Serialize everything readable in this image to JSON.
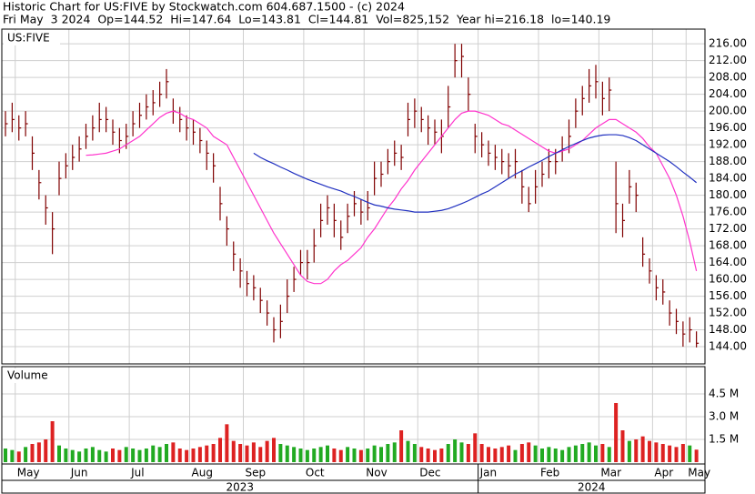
{
  "chart_data": {
    "type": "ohlc",
    "title": "Historic Chart for US:FIVE by Stockwatch.com 604.687.1500 - (c) 2024",
    "subtitle": "Fri May  3 2024  Op=144.52  Hi=147.64  Lo=143.81  Cl=144.81  Vol=825,152  Year hi=216.18  lo=140.19",
    "symbol": "US:FIVE",
    "categories": [
      null,
      null,
      "May",
      null,
      null,
      null,
      null,
      null,
      null,
      null,
      "Jun",
      null,
      null,
      null,
      null,
      null,
      null,
      null,
      null,
      "Jul",
      null,
      null,
      null,
      null,
      null,
      null,
      null,
      null,
      "Aug",
      null,
      null,
      null,
      null,
      null,
      null,
      null,
      "Sep",
      null,
      null,
      null,
      null,
      null,
      null,
      null,
      null,
      "Oct",
      null,
      null,
      null,
      null,
      null,
      null,
      null,
      null,
      "Nov",
      null,
      null,
      null,
      null,
      null,
      null,
      null,
      "Dec",
      null,
      null,
      null,
      null,
      null,
      null,
      null,
      null,
      "Jan",
      null,
      null,
      null,
      null,
      null,
      null,
      null,
      null,
      "Feb",
      null,
      null,
      null,
      null,
      null,
      null,
      null,
      null,
      "Mar",
      null,
      null,
      null,
      null,
      null,
      null,
      null,
      "Apr",
      null,
      null,
      null,
      null,
      "May",
      null
    ],
    "x_groups": [
      "2023",
      "2024"
    ],
    "color": "#800000",
    "high": [
      200,
      202,
      199,
      200,
      194,
      186,
      180,
      176,
      188,
      190,
      192,
      194,
      197,
      199,
      202,
      201,
      198,
      196,
      197,
      200,
      202,
      204,
      205,
      207,
      210,
      203,
      201,
      199,
      198,
      196,
      193,
      190,
      182,
      175,
      169,
      165,
      162,
      161,
      158,
      155,
      151,
      154,
      160,
      163,
      167,
      167,
      172,
      178,
      180,
      178,
      174,
      178,
      181,
      179,
      181,
      188,
      188,
      191,
      193,
      192,
      202,
      203,
      201,
      199,
      198,
      198,
      206,
      216,
      216,
      208,
      197,
      195,
      193,
      192,
      191,
      190,
      191,
      186,
      182,
      186,
      188,
      191,
      191,
      194,
      198,
      203,
      206,
      210,
      211,
      207,
      208,
      188,
      178,
      186,
      183,
      170,
      165,
      161,
      160,
      155,
      153,
      150,
      151,
      147.64
    ],
    "low": [
      194,
      195,
      193,
      194,
      186,
      179,
      173,
      166,
      180,
      184,
      186,
      188,
      191,
      193,
      195,
      195,
      192,
      190,
      191,
      194,
      196,
      198,
      199,
      201,
      203,
      197,
      195,
      193,
      192,
      190,
      186,
      183,
      174,
      168,
      162,
      158,
      156,
      155,
      152,
      149,
      145,
      146,
      152,
      157,
      161,
      160,
      164,
      170,
      173,
      170,
      167,
      171,
      175,
      173,
      174,
      180,
      182,
      185,
      187,
      186,
      194,
      196,
      195,
      192,
      192,
      190,
      196,
      208,
      208,
      200,
      190,
      189,
      187,
      186,
      185,
      184,
      184,
      178,
      176,
      178,
      182,
      184,
      185,
      188,
      190,
      196,
      199,
      202,
      203,
      199,
      200,
      171,
      170,
      178,
      176,
      163,
      159,
      155,
      154,
      149,
      147,
      144,
      145,
      143.81
    ],
    "close": [
      197,
      198,
      196,
      197,
      190,
      183,
      177,
      172,
      184,
      187,
      189,
      191,
      194,
      196,
      198,
      198,
      195,
      193,
      194,
      197,
      199,
      201,
      202,
      204,
      207,
      200,
      198,
      196,
      195,
      193,
      190,
      187,
      178,
      172,
      166,
      162,
      159,
      158,
      155,
      152,
      148,
      150,
      156,
      160,
      164,
      164,
      168,
      174,
      177,
      174,
      170,
      175,
      178,
      176,
      177,
      184,
      185,
      188,
      190,
      189,
      198,
      200,
      198,
      196,
      195,
      194,
      201,
      212,
      213,
      204,
      194,
      192,
      190,
      189,
      188,
      187,
      188,
      182,
      178,
      182,
      185,
      188,
      188,
      191,
      194,
      200,
      203,
      206,
      207,
      203,
      205,
      178,
      174,
      182,
      180,
      166,
      162,
      158,
      157,
      152,
      150,
      147,
      148,
      144.81
    ],
    "moving_averages": [
      {
        "color": "#ff33cc",
        "values": [
          null,
          null,
          null,
          null,
          null,
          null,
          null,
          null,
          null,
          null,
          null,
          null,
          189.5,
          189.6,
          189.8,
          190,
          190.5,
          191,
          192,
          193,
          194,
          195.5,
          197,
          198.5,
          199.5,
          200,
          199.5,
          198.5,
          198,
          197,
          196,
          194,
          193,
          192,
          189,
          186,
          183,
          180,
          177,
          174,
          171,
          168.5,
          166,
          163.5,
          161,
          159.5,
          159,
          159,
          160,
          162,
          163.5,
          164.5,
          166,
          167.5,
          170,
          172,
          174.5,
          177,
          179,
          181.5,
          183.5,
          186,
          188,
          190,
          192,
          194,
          196,
          198,
          199.5,
          200,
          200,
          199.5,
          199,
          198,
          197,
          196.5,
          195.5,
          194.5,
          193.5,
          192.5,
          191.5,
          190.5,
          190,
          190.5,
          191,
          192,
          193,
          194.5,
          196,
          197,
          198,
          198,
          197,
          196,
          195,
          193.5,
          191.5,
          190,
          187,
          184,
          180,
          175,
          169,
          162
        ]
      },
      {
        "color": "#2030c0",
        "values": [
          null,
          null,
          null,
          null,
          null,
          null,
          null,
          null,
          null,
          null,
          null,
          null,
          null,
          null,
          null,
          null,
          null,
          null,
          null,
          null,
          null,
          null,
          null,
          null,
          null,
          null,
          null,
          null,
          null,
          null,
          null,
          null,
          null,
          null,
          null,
          null,
          null,
          190,
          189,
          188.2,
          187.5,
          186.7,
          186,
          185.2,
          184.5,
          183.8,
          183.2,
          182.6,
          182,
          181.5,
          181,
          180.3,
          179.7,
          179,
          178.3,
          177.7,
          177.4,
          177,
          176.7,
          176.5,
          176.3,
          176,
          176,
          176,
          176.2,
          176.4,
          176.8,
          177.4,
          178,
          178.7,
          179.5,
          180.3,
          181,
          182,
          183,
          184,
          185,
          185.8,
          186.7,
          187.5,
          188.3,
          189.2,
          190,
          190.8,
          191.6,
          192.3,
          193,
          193.6,
          194,
          194.3,
          194.4,
          194.4,
          194.2,
          193.7,
          193,
          192,
          191,
          190,
          189,
          188,
          186.8,
          185.5,
          184.3,
          183
        ]
      }
    ],
    "ylim": [
      139.9,
      219.5
    ],
    "yticks": [
      {
        "value": 144,
        "label": "144.00"
      },
      {
        "value": 148,
        "label": "148.00"
      },
      {
        "value": 152,
        "label": "152.00"
      },
      {
        "value": 156,
        "label": "156.00"
      },
      {
        "value": 160,
        "label": "160.00"
      },
      {
        "value": 164,
        "label": "164.00"
      },
      {
        "value": 168,
        "label": "168.00"
      },
      {
        "value": 172,
        "label": "172.00"
      },
      {
        "value": 176,
        "label": "176.00"
      },
      {
        "value": 180,
        "label": "180.00"
      },
      {
        "value": 184,
        "label": "184.00"
      },
      {
        "value": 188,
        "label": "188.00"
      },
      {
        "value": 192,
        "label": "192.00"
      },
      {
        "value": 196,
        "label": "196.00"
      },
      {
        "value": 200,
        "label": "200.00"
      },
      {
        "value": 204,
        "label": "204.00"
      },
      {
        "value": 208,
        "label": "208.00"
      },
      {
        "value": 212,
        "label": "212.00"
      },
      {
        "value": 216,
        "label": "216.00"
      }
    ],
    "grid": true,
    "volume": {
      "label": "Volume",
      "up_color": "#22aa22",
      "down_color": "#dd2222",
      "values": [
        900000,
        800000,
        700000,
        1000000,
        1200000,
        1300000,
        1500000,
        2700000,
        1100000,
        900000,
        800000,
        700000,
        900000,
        1000000,
        800000,
        700000,
        900000,
        800000,
        1000000,
        900000,
        800000,
        900000,
        1100000,
        1000000,
        1200000,
        1300000,
        900000,
        800000,
        900000,
        1000000,
        1100000,
        1200000,
        1600000,
        2500000,
        1400000,
        1200000,
        1100000,
        1300000,
        1000000,
        1400000,
        1600000,
        1200000,
        1100000,
        1000000,
        900000,
        800000,
        900000,
        1000000,
        1100000,
        900000,
        800000,
        1000000,
        900000,
        800000,
        900000,
        1100000,
        1000000,
        1200000,
        1300000,
        2100000,
        1400000,
        1200000,
        1000000,
        900000,
        800000,
        900000,
        1200000,
        1500000,
        1300000,
        1200000,
        1900000,
        1200000,
        1000000,
        900000,
        1000000,
        1100000,
        800000,
        1200000,
        1300000,
        1100000,
        900000,
        1000000,
        900000,
        800000,
        1000000,
        1100000,
        1200000,
        1300000,
        1100000,
        1200000,
        1000000,
        3900000,
        2100000,
        1400000,
        1500000,
        1700000,
        1400000,
        1300000,
        1200000,
        1100000,
        1000000,
        1200000,
        1100000,
        825152
      ],
      "ylim": [
        0,
        6300000
      ],
      "yticks": [
        {
          "value": 1500000,
          "label": "1.5 M"
        },
        {
          "value": 3000000,
          "label": "3.0 M"
        },
        {
          "value": 4500000,
          "label": "4.5 M"
        }
      ]
    }
  }
}
